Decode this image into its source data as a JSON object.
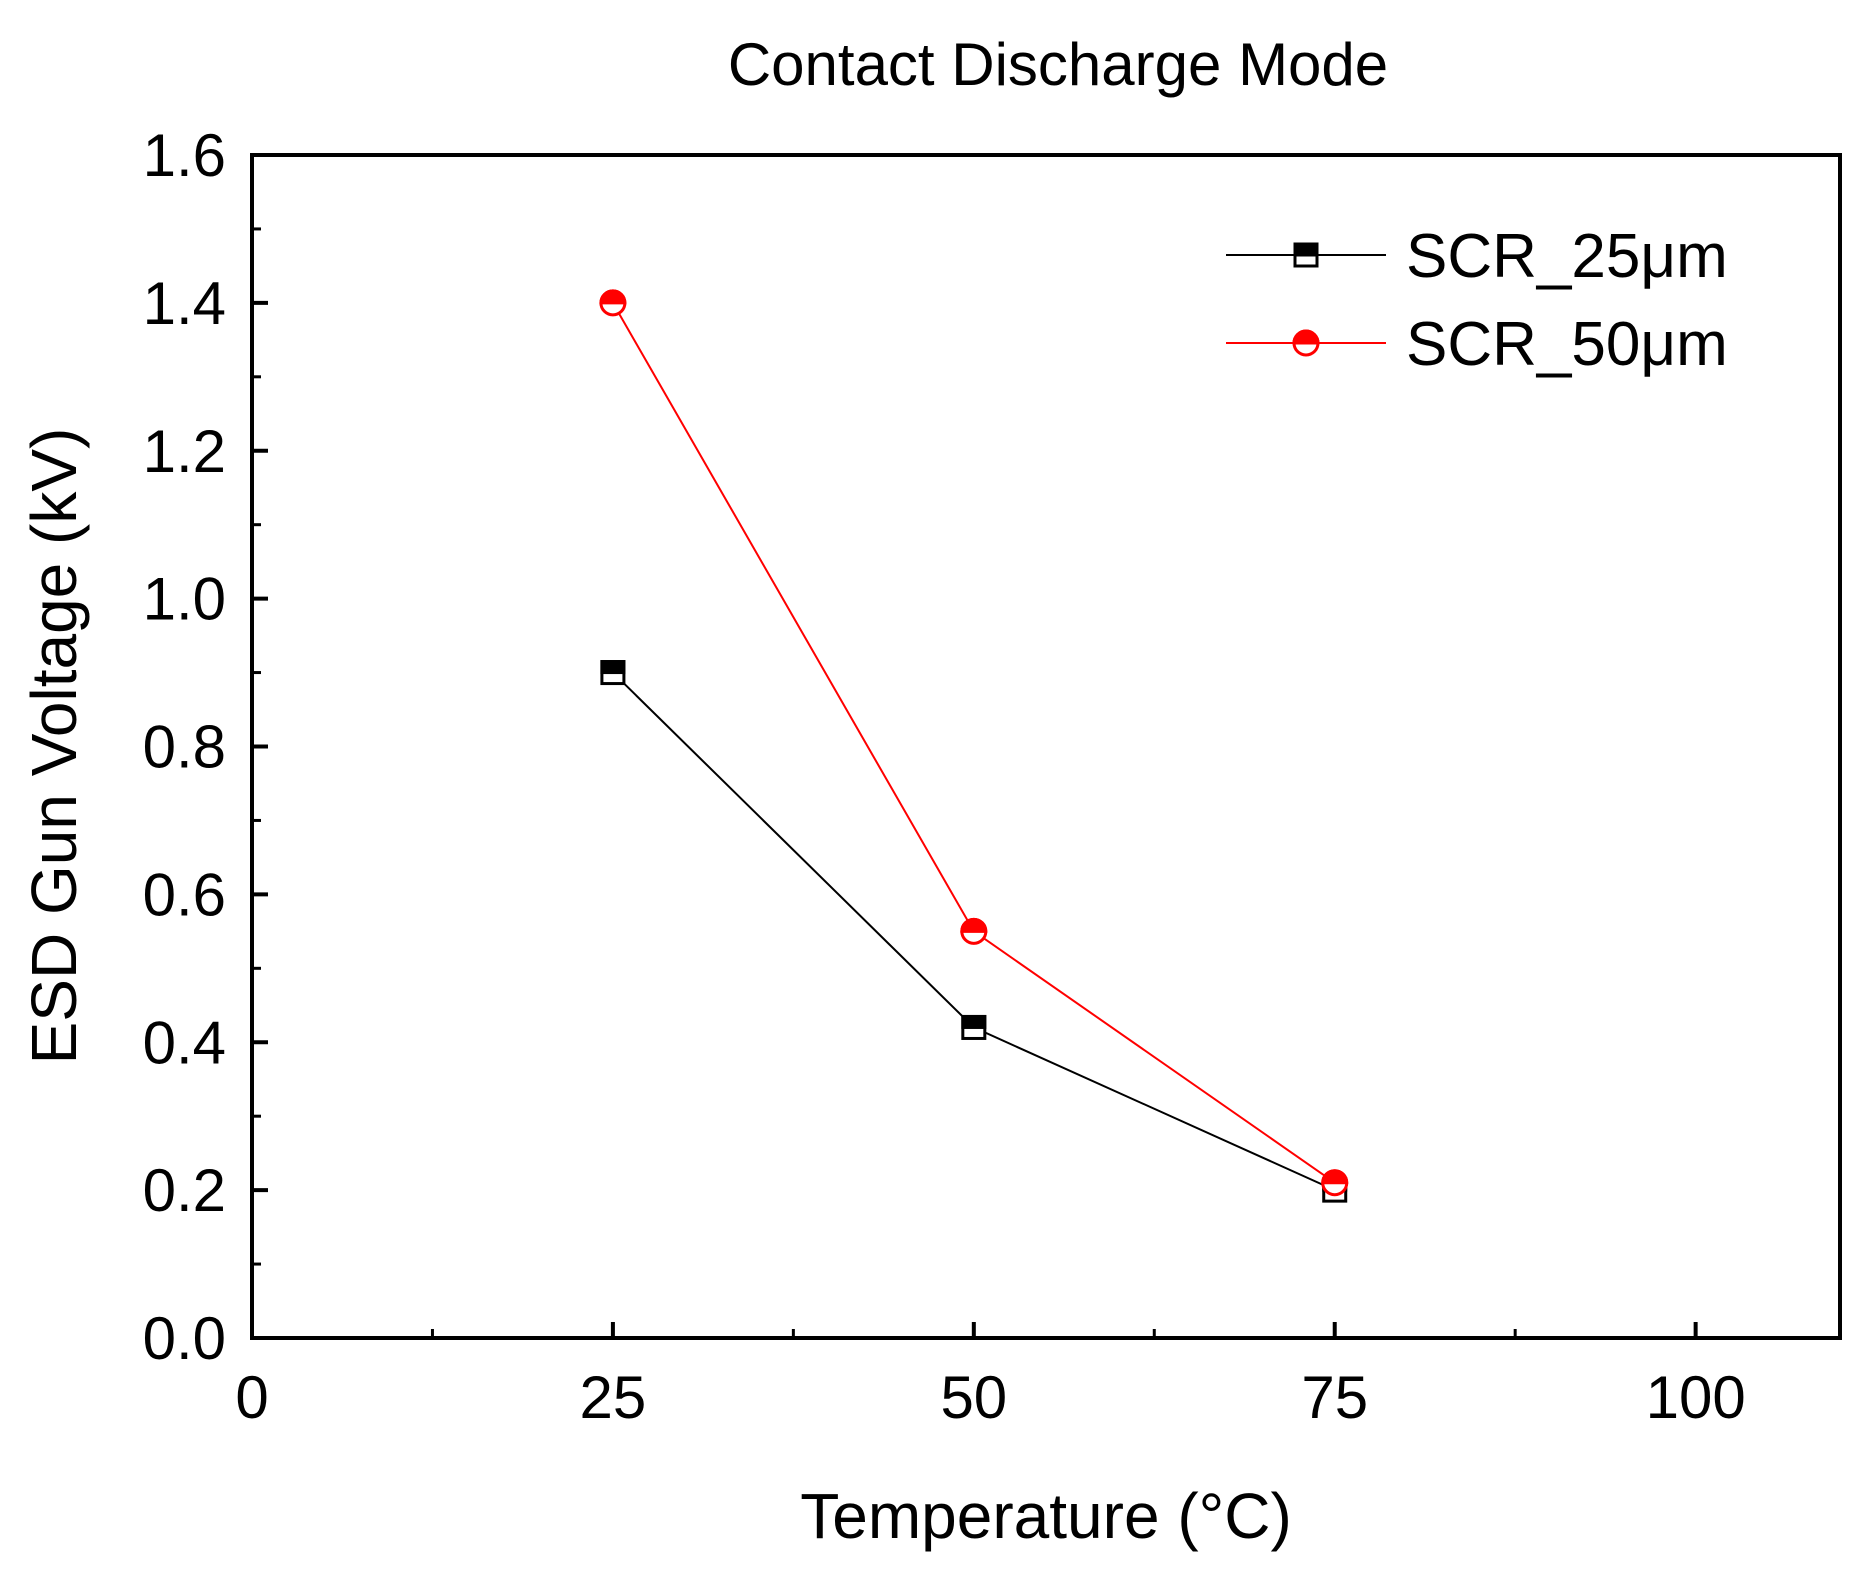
{
  "chart_data": {
    "type": "line",
    "title": "Contact Discharge Mode",
    "xlabel": "Temperature (°C)",
    "ylabel": "ESD Gun Voltage (kV)",
    "xlim": [
      0,
      110
    ],
    "ylim": [
      0,
      1.6
    ],
    "x_ticks": [
      0,
      25,
      50,
      75,
      100
    ],
    "x_tick_labels": [
      "0",
      "25",
      "50",
      "75",
      "100"
    ],
    "y_ticks": [
      0.0,
      0.2,
      0.4,
      0.6,
      0.8,
      1.0,
      1.2,
      1.4,
      1.6
    ],
    "y_tick_labels": [
      "0.0",
      "0.2",
      "0.4",
      "0.6",
      "0.8",
      "1.0",
      "1.2",
      "1.4",
      "1.6"
    ],
    "grid": false,
    "legend_position": "top-right",
    "series": [
      {
        "name": "SCR_25μm",
        "color": "#000000",
        "marker": "half-filled-square",
        "x": [
          25,
          50,
          75
        ],
        "y": [
          0.9,
          0.42,
          0.2
        ]
      },
      {
        "name": "SCR_50μm",
        "color": "#ff0000",
        "marker": "half-filled-circle",
        "x": [
          25,
          50,
          75
        ],
        "y": [
          1.4,
          0.55,
          0.21
        ]
      }
    ]
  }
}
